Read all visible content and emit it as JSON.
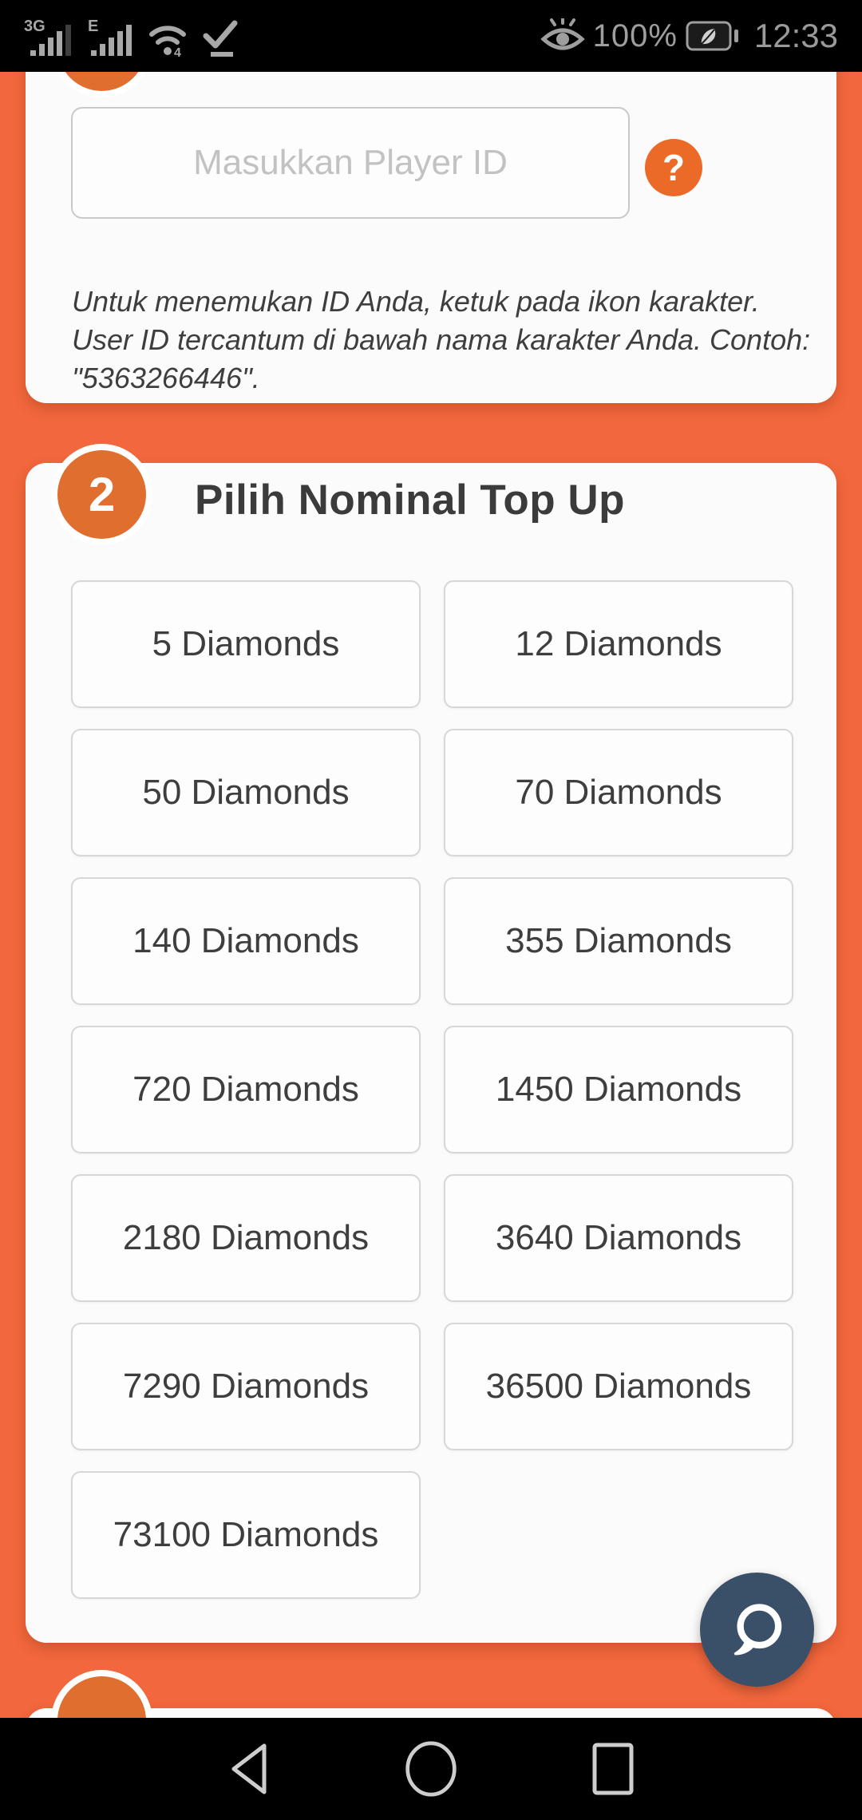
{
  "status_bar": {
    "network_badge_1": "3G",
    "network_badge_2": "E",
    "battery_level": "100%",
    "time": "12:33"
  },
  "player_id_card": {
    "input_placeholder": "Masukkan Player ID",
    "help_label": "?",
    "instruction": "Untuk menemukan ID Anda, ketuk pada ikon karakter. User ID tercantum di bawah nama karakter Anda. Contoh: \"5363266446\"."
  },
  "nominal_card": {
    "step_number": "2",
    "title": "Pilih Nominal Top Up",
    "options": [
      "5 Diamonds",
      "12 Diamonds",
      "50 Diamonds",
      "70 Diamonds",
      "140 Diamonds",
      "355 Diamonds",
      "720 Diamonds",
      "1450 Diamonds",
      "2180 Diamonds",
      "3640 Diamonds",
      "7290 Diamonds",
      "36500 Diamonds",
      "73100 Diamonds"
    ]
  },
  "colors": {
    "background_orange": "#F2673D",
    "step_badge_orange": "#E06E2F",
    "help_button_orange": "#EC6A28",
    "chat_fab_navy": "#3A4F68",
    "card_background": "#FBFBFB"
  }
}
